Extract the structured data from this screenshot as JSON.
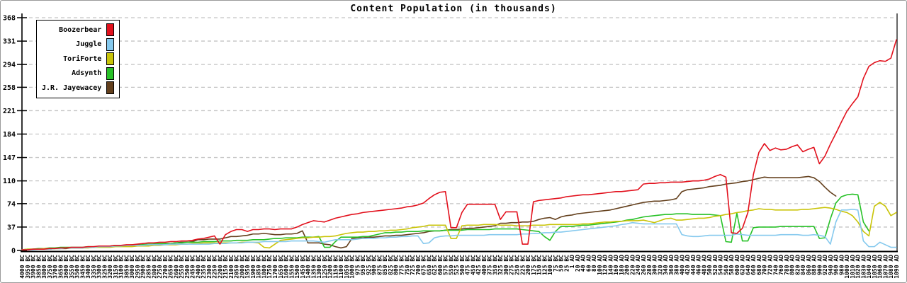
{
  "chart_data": {
    "type": "line",
    "title": "Content Population (in thousands)",
    "ylabel": "",
    "xlabel": "",
    "ylim": [
      0,
      368
    ],
    "y_ticks": [
      0,
      37,
      74,
      110,
      147,
      184,
      221,
      258,
      294,
      331,
      368
    ],
    "grid": "horizontal-dashed",
    "grid_color": "#c4c4c4",
    "axis_color": "#000000",
    "legend_position": "top-left",
    "x_labels": [
      "4000 BC",
      "3950 BC",
      "3900 BC",
      "3850 BC",
      "3800 BC",
      "3750 BC",
      "3700 BC",
      "3650 BC",
      "3600 BC",
      "3550 BC",
      "3500 BC",
      "3450 BC",
      "3400 BC",
      "3350 BC",
      "3300 BC",
      "3250 BC",
      "3200 BC",
      "3150 BC",
      "3100 BC",
      "3050 BC",
      "3000 BC",
      "2950 BC",
      "2900 BC",
      "2850 BC",
      "2800 BC",
      "2750 BC",
      "2700 BC",
      "2650 BC",
      "2600 BC",
      "2550 BC",
      "2500 BC",
      "2450 BC",
      "2400 BC",
      "2350 BC",
      "2300 BC",
      "2250 BC",
      "2200 BC",
      "2150 BC",
      "2100 BC",
      "2050 BC",
      "2000 BC",
      "1950 BC",
      "1900 BC",
      "1850 BC",
      "1800 BC",
      "1750 BC",
      "1700 BC",
      "1650 BC",
      "1600 BC",
      "1550 BC",
      "1500 BC",
      "1450 BC",
      "1400 BC",
      "1350 BC",
      "1300 BC",
      "1250 BC",
      "1200 BC",
      "1150 BC",
      "1100 BC",
      "1050 BC",
      "1000 BC",
      "975 BC",
      "950 BC",
      "925 BC",
      "900 BC",
      "875 BC",
      "850 BC",
      "825 BC",
      "800 BC",
      "775 BC",
      "750 BC",
      "725 BC",
      "700 BC",
      "675 BC",
      "650 BC",
      "625 BC",
      "600 BC",
      "575 BC",
      "550 BC",
      "525 BC",
      "500 BC",
      "475 BC",
      "450 BC",
      "425 BC",
      "400 BC",
      "375 BC",
      "350 BC",
      "325 BC",
      "300 BC",
      "275 BC",
      "250 BC",
      "225 BC",
      "200 BC",
      "175 BC",
      "150 BC",
      "125 BC",
      "100 BC",
      "75 BC",
      "50 BC",
      "25 BC",
      "1 AD",
      "20 AD",
      "40 AD",
      "60 AD",
      "80 AD",
      "100 AD",
      "120 AD",
      "140 AD",
      "160 AD",
      "180 AD",
      "200 AD",
      "220 AD",
      "240 AD",
      "260 AD",
      "280 AD",
      "300 AD",
      "320 AD",
      "340 AD",
      "360 AD",
      "380 AD",
      "400 AD",
      "420 AD",
      "440 AD",
      "460 AD",
      "480 AD",
      "500 AD",
      "520 AD",
      "540 AD",
      "560 AD",
      "580 AD",
      "600 AD",
      "620 AD",
      "640 AD",
      "660 AD",
      "680 AD",
      "700 AD",
      "720 AD",
      "740 AD",
      "760 AD",
      "780 AD",
      "800 AD",
      "820 AD",
      "840 AD",
      "860 AD",
      "880 AD",
      "900 AD",
      "920 AD",
      "940 AD",
      "960 AD",
      "980 AD",
      "1000 AD",
      "1010 AD",
      "1020 AD",
      "1030 AD",
      "1040 AD",
      "1050 AD",
      "1060 AD",
      "1070 AD",
      "1080 AD",
      "1090 AD"
    ],
    "series": [
      {
        "name": "Boozerbear",
        "color": "#e2101c",
        "values": [
          1,
          1,
          2,
          2,
          2,
          3,
          3,
          4,
          4,
          5,
          5,
          5,
          6,
          6,
          7,
          7,
          7,
          8,
          8,
          9,
          9,
          10,
          11,
          12,
          12,
          13,
          13,
          14,
          14,
          15,
          15,
          16,
          18,
          19,
          21,
          23,
          10,
          25,
          30,
          33,
          33,
          30,
          33,
          33,
          34,
          34,
          33,
          34,
          34,
          34,
          37,
          41,
          44,
          47,
          46,
          45,
          48,
          51,
          53,
          55,
          57,
          58,
          60,
          61,
          62,
          63,
          64,
          65,
          66,
          67,
          69,
          70,
          72,
          75,
          82,
          88,
          92,
          93,
          36,
          36,
          60,
          73,
          73,
          73,
          73,
          73,
          73,
          49,
          61,
          61,
          61,
          10,
          10,
          77,
          79,
          80,
          81,
          82,
          83,
          85,
          86,
          87,
          88,
          88,
          89,
          90,
          91,
          92,
          93,
          93,
          94,
          95,
          96,
          105,
          106,
          106,
          107,
          107,
          108,
          108,
          108,
          109,
          110,
          110,
          111,
          113,
          117,
          120,
          116,
          28,
          27,
          35,
          60,
          120,
          155,
          169,
          158,
          162,
          159,
          160,
          164,
          167,
          156,
          160,
          163,
          137,
          149,
          168,
          185,
          203,
          220,
          232,
          243,
          272,
          291,
          297,
          300,
          299,
          304,
          333
        ]
      },
      {
        "name": "Juggle",
        "color": "#85c9ee",
        "values": [
          1,
          1,
          1,
          2,
          2,
          2,
          3,
          3,
          4,
          4,
          4,
          4,
          5,
          5,
          6,
          6,
          6,
          7,
          7,
          8,
          8,
          8,
          8,
          9,
          9,
          9,
          9,
          10,
          10,
          10,
          10,
          10,
          10,
          10,
          10,
          11,
          11,
          11,
          12,
          12,
          12,
          13,
          13,
          13,
          14,
          14,
          14,
          14,
          14,
          15,
          15,
          15,
          15,
          15,
          14,
          13,
          15,
          17,
          17,
          17,
          17,
          18,
          19,
          19,
          19,
          20,
          20,
          21,
          21,
          22,
          22,
          23,
          23,
          11,
          12,
          20,
          22,
          23,
          23,
          24,
          24,
          24,
          24,
          24,
          24,
          25,
          25,
          25,
          25,
          25,
          25,
          26,
          26,
          27,
          27,
          28,
          28,
          29,
          29,
          30,
          31,
          32,
          33,
          34,
          35,
          36,
          37,
          38,
          39,
          41,
          42,
          44,
          43,
          42,
          42,
          42,
          42,
          42,
          42,
          42,
          25,
          23,
          22,
          22,
          23,
          24,
          24,
          24,
          24,
          24,
          26,
          25,
          24,
          24,
          24,
          24,
          24,
          24,
          25,
          25,
          25,
          25,
          24,
          24,
          25,
          24,
          22,
          10,
          45,
          64,
          64,
          65,
          64,
          15,
          6,
          6,
          13,
          9,
          5,
          5
        ]
      },
      {
        "name": "ToriForte",
        "color": "#c9c408",
        "values": [
          1,
          2,
          2,
          2,
          3,
          3,
          3,
          3,
          4,
          4,
          4,
          4,
          4,
          5,
          5,
          5,
          5,
          6,
          6,
          6,
          6,
          7,
          7,
          7,
          8,
          8,
          9,
          9,
          9,
          10,
          10,
          11,
          11,
          12,
          12,
          12,
          12,
          12,
          12,
          12,
          13,
          13,
          13,
          12,
          5,
          4,
          10,
          16,
          17,
          18,
          19,
          20,
          20,
          21,
          21,
          22,
          22,
          23,
          25,
          27,
          28,
          29,
          29,
          30,
          30,
          31,
          31,
          32,
          32,
          33,
          34,
          36,
          37,
          38,
          40,
          40,
          40,
          40,
          19,
          19,
          39,
          40,
          40,
          40,
          41,
          41,
          41,
          40,
          40,
          40,
          39,
          39,
          39,
          40,
          40,
          40,
          41,
          41,
          41,
          41,
          41,
          41,
          42,
          42,
          43,
          44,
          45,
          45,
          46,
          46,
          47,
          47,
          47,
          48,
          46,
          44,
          47,
          50,
          51,
          48,
          48,
          49,
          50,
          51,
          51,
          52,
          54,
          55,
          57,
          58,
          60,
          61,
          63,
          64,
          66,
          65,
          65,
          64,
          64,
          64,
          64,
          64,
          65,
          65,
          66,
          67,
          68,
          67,
          65,
          62,
          60,
          55,
          45,
          30,
          23,
          70,
          76,
          70,
          55,
          60
        ]
      },
      {
        "name": "Adsynth",
        "color": "#27c127",
        "values": [
          1,
          2,
          2,
          3,
          3,
          4,
          4,
          5,
          5,
          5,
          5,
          5,
          6,
          6,
          6,
          7,
          7,
          8,
          8,
          8,
          9,
          9,
          9,
          10,
          10,
          11,
          11,
          11,
          12,
          12,
          13,
          13,
          13,
          14,
          14,
          14,
          15,
          15,
          15,
          16,
          16,
          16,
          17,
          17,
          17,
          18,
          19,
          19,
          20,
          20,
          20,
          21,
          21,
          21,
          22,
          5,
          5,
          14,
          21,
          21,
          21,
          21,
          22,
          22,
          24,
          26,
          28,
          28,
          29,
          29,
          30,
          30,
          30,
          31,
          31,
          31,
          31,
          32,
          32,
          32,
          32,
          33,
          33,
          33,
          33,
          33,
          34,
          34,
          34,
          34,
          34,
          33,
          32,
          31,
          30,
          22,
          16,
          30,
          38,
          38,
          38,
          39,
          40,
          40,
          41,
          42,
          43,
          44,
          45,
          46,
          48,
          49,
          51,
          53,
          54,
          55,
          56,
          57,
          57,
          58,
          58,
          58,
          57,
          57,
          57,
          57,
          56,
          55,
          14,
          13,
          59,
          15,
          15,
          36,
          37,
          37,
          37,
          37,
          38,
          38,
          38,
          38,
          38,
          38,
          38,
          19,
          20,
          50,
          75,
          85,
          88,
          89,
          88,
          45,
          31,
          null,
          null,
          null,
          null,
          null
        ]
      },
      {
        "name": "J.R. Jayewacey",
        "color": "#633f1c",
        "values": [
          1,
          1,
          2,
          2,
          2,
          2,
          3,
          3,
          3,
          4,
          4,
          4,
          5,
          5,
          6,
          6,
          6,
          7,
          7,
          8,
          8,
          8,
          9,
          9,
          10,
          10,
          11,
          11,
          12,
          13,
          13,
          14,
          17,
          17,
          18,
          18,
          18,
          20,
          22,
          22,
          23,
          24,
          26,
          26,
          27,
          26,
          25,
          25,
          26,
          26,
          27,
          31,
          12,
          12,
          12,
          10,
          9,
          6,
          4,
          6,
          19,
          20,
          20,
          21,
          21,
          22,
          23,
          23,
          24,
          24,
          25,
          26,
          27,
          28,
          30,
          31,
          31,
          32,
          33,
          33,
          34,
          35,
          35,
          36,
          37,
          38,
          39,
          43,
          43,
          44,
          44,
          45,
          45,
          46,
          49,
          51,
          52,
          49,
          53,
          55,
          56,
          58,
          59,
          60,
          61,
          62,
          63,
          64,
          66,
          68,
          70,
          72,
          74,
          76,
          77,
          78,
          78,
          79,
          80,
          82,
          93,
          96,
          97,
          98,
          99,
          101,
          102,
          103,
          105,
          106,
          107,
          109,
          110,
          112,
          114,
          116,
          115,
          115,
          115,
          115,
          115,
          115,
          116,
          117,
          115,
          109,
          100,
          92,
          86,
          null,
          null,
          null,
          null,
          null,
          null,
          null,
          null,
          null,
          null,
          null
        ]
      }
    ]
  }
}
